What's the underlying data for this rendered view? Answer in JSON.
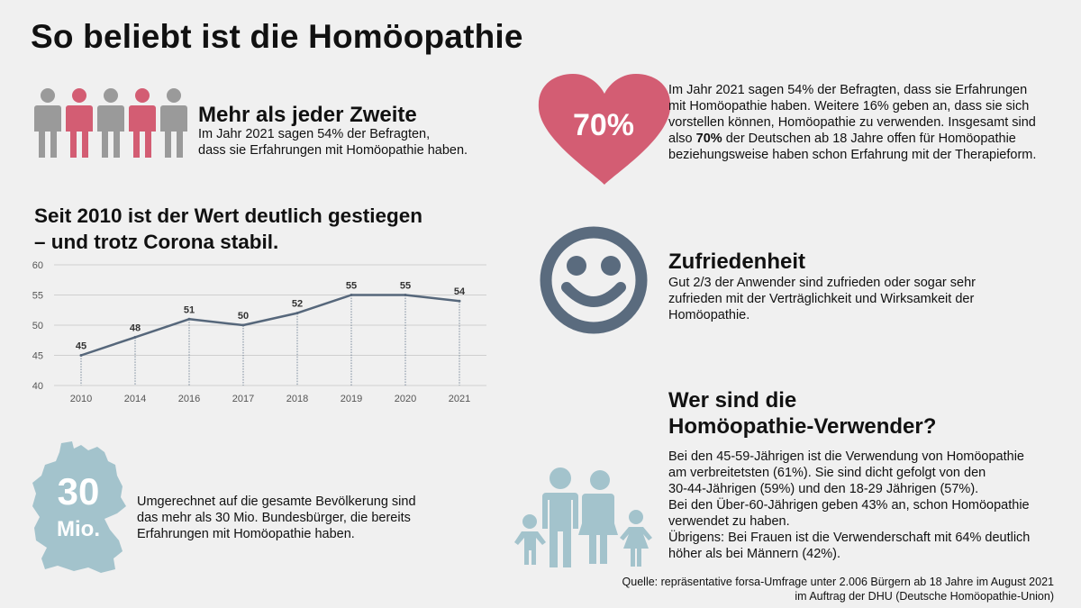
{
  "title": "So beliebt ist die Homöopathie",
  "section1": {
    "heading": "Mehr als jeder Zweite",
    "text_line1": "Im Jahr 2021 sagen 54% der Befragten,",
    "text_line2": "dass sie Erfahrungen mit Homöopathie haben."
  },
  "heart": {
    "value": "70%",
    "lines": [
      "Im Jahr 2021 sagen 54% der Befragten, dass sie Erfahrungen",
      "mit Homöopathie haben. Weitere 16% geben an, dass sie sich",
      "vorstellen können, Homöopathie zu verwenden. Insgesamt sind"
    ],
    "line4_pre": "also ",
    "line4_bold": "70%",
    "line4_post": " der Deutschen ab 18 Jahre offen für Homöopathie",
    "line5": "beziehungsweise haben schon Erfahrung mit der Therapieform."
  },
  "chart_section": {
    "heading_line1": "Seit 2010 ist der Wert deutlich gestiegen",
    "heading_line2": "– und trotz Corona stabil."
  },
  "chart_data": {
    "type": "line",
    "categories": [
      "2010",
      "2014",
      "2016",
      "2017",
      "2018",
      "2019",
      "2020",
      "2021"
    ],
    "values": [
      45,
      48,
      51,
      50,
      52,
      55,
      55,
      54
    ],
    "yticks": [
      "60",
      "55",
      "50",
      "45",
      "40"
    ],
    "ylim": [
      40,
      60
    ],
    "title": "",
    "xlabel": "",
    "ylabel": "",
    "line_color": "#56677b"
  },
  "satisfaction": {
    "heading": "Zufriedenheit",
    "lines": [
      "Gut 2/3 der Anwender sind zufrieden oder sogar sehr",
      "zufrieden mit der Verträglichkeit und Wirksamkeit der",
      "Homöopathie."
    ]
  },
  "germany": {
    "big_number": "30",
    "unit": "Mio.",
    "lines": [
      "Umgerechnet auf die gesamte Bevölkerung sind",
      "das mehr als 30 Mio. Bundesbürger, die bereits",
      "Erfahrungen mit Homöopathie haben."
    ]
  },
  "users": {
    "heading_line1": "Wer sind die",
    "heading_line2": "Homöopathie-Verwender?",
    "lines": [
      "Bei den 45-59-Jährigen ist die Verwendung von Homöopathie",
      "am verbreitetsten (61%). Sie sind dicht gefolgt von den",
      "30-44-Jährigen (59%) und den 18-29 Jährigen (57%).",
      "Bei den Über-60-Jährigen geben 43% an, schon Homöopathie",
      "verwendet zu haben.",
      "Übrigens: Bei Frauen ist die Verwenderschaft mit 64% deutlich",
      "höher als bei Männern (42%)."
    ]
  },
  "source": {
    "line1": "Quelle: repräsentative forsa-Umfrage unter 2.006 Bürgern ab 18 Jahre im August 2021",
    "line2": "im Auftrag der DHU (Deutsche Homöopathie-Union)"
  },
  "colors": {
    "grey": "#9a9a9a",
    "pink": "#d35d73",
    "slate": "#5a6b7e",
    "teal": "#a3c3cc",
    "background": "#f0f0f0"
  }
}
